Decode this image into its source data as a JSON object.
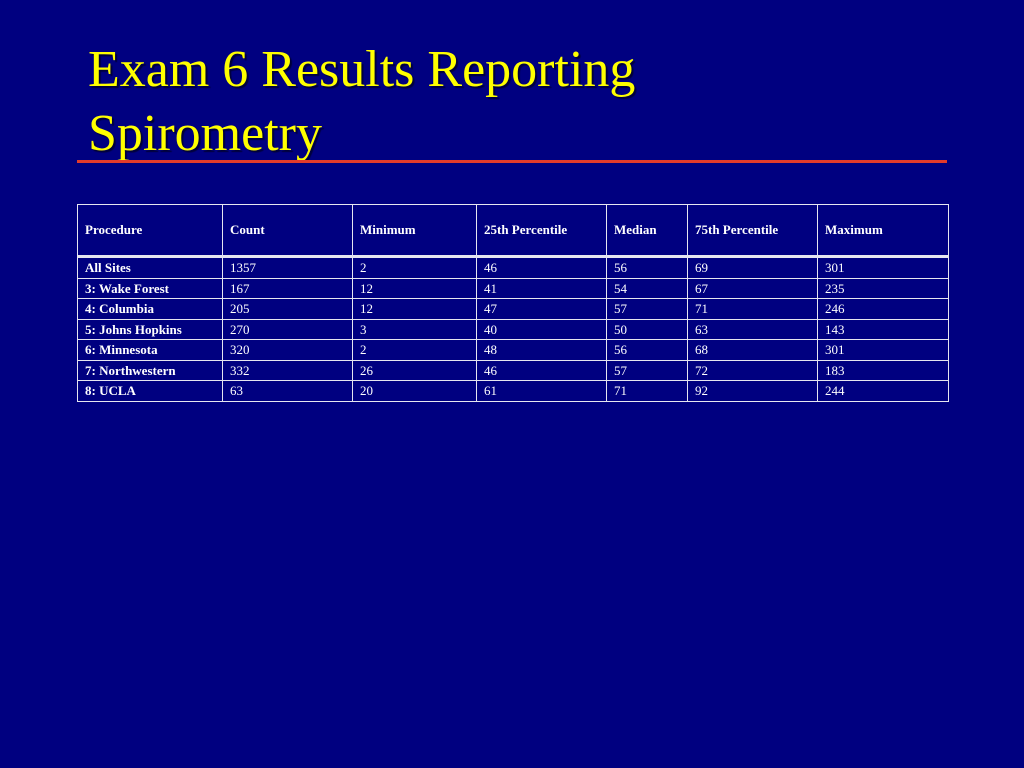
{
  "slide": {
    "title_line1": "Exam 6 Results Reporting",
    "title_line2": "Spirometry"
  },
  "colors": {
    "background": "#000080",
    "title": "#FFFF00",
    "rule": "#E23B2B",
    "table_text": "#FFFFFF",
    "table_border": "#E6E6F0"
  },
  "table": {
    "headers": [
      "Procedure",
      "Count",
      "Minimum",
      "25th Percentile",
      "Median",
      "75th Percentile",
      "Maximum"
    ],
    "rows": [
      [
        "All Sites",
        "1357",
        "2",
        "46",
        "56",
        "69",
        "301"
      ],
      [
        "3: Wake Forest",
        "167",
        "12",
        "41",
        "54",
        "67",
        "235"
      ],
      [
        "4: Columbia",
        "205",
        "12",
        "47",
        "57",
        "71",
        "246"
      ],
      [
        "5: Johns Hopkins",
        "270",
        "3",
        "40",
        "50",
        "63",
        "143"
      ],
      [
        "6: Minnesota",
        "320",
        "2",
        "48",
        "56",
        "68",
        "301"
      ],
      [
        "7: Northwestern",
        "332",
        "26",
        "46",
        "57",
        "72",
        "183"
      ],
      [
        "8: UCLA",
        "63",
        "20",
        "61",
        "71",
        "92",
        "244"
      ]
    ]
  }
}
